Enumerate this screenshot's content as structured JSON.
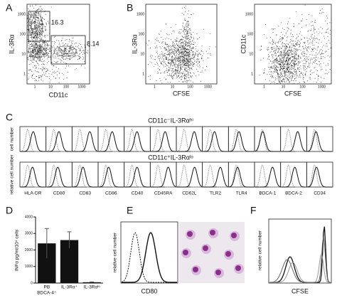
{
  "panel_a": {
    "letter": "A",
    "y_label": "IL-3Rα",
    "x_label": "CD11c",
    "gates": [
      "16.3",
      "8.14"
    ],
    "x_ticks": [
      "1",
      "10",
      "100",
      "1000"
    ],
    "y_ticks": [
      "1",
      "10",
      "100",
      "1000"
    ]
  },
  "panel_b": {
    "letter": "B",
    "plots": [
      {
        "y_label": "IL-3Rα",
        "x_label": "CFSE"
      },
      {
        "y_label": "CD11c",
        "x_label": "CFSE"
      }
    ],
    "x_ticks": [
      "1",
      "10",
      "100",
      "1000"
    ],
    "y_ticks": [
      "1",
      "10",
      "100",
      "1000"
    ]
  },
  "panel_c": {
    "letter": "C",
    "rows": [
      {
        "title": "CD11c⁻IL-3Rαʰⁱ",
        "y_label": "cell number"
      },
      {
        "title": "CD11c⁺IL-3Rαˡᵒ",
        "y_label": "relative cell number"
      }
    ],
    "markers": [
      "HLA-DR",
      "CD80",
      "CD83",
      "CD86",
      "CD40",
      "CD45RA",
      "CD62L",
      "TLR2",
      "TLR4",
      "BDCA-1",
      "BDCA-2",
      "CD34"
    ]
  },
  "panel_d": {
    "letter": "D",
    "y_label": "INFα pg/ml/10⁴ cells",
    "categories": [
      [
        "PB",
        "BDCA-4⁺"
      ],
      [
        "IL-3Rα⁺"
      ],
      [
        "IL-3Rαˡᵒ"
      ]
    ],
    "values": [
      2400,
      2600,
      50
    ],
    "errors": [
      900,
      500,
      20
    ],
    "ylim": [
      0,
      4000
    ],
    "yticks": [
      0,
      1000,
      2000,
      3000,
      4000
    ]
  },
  "panel_e": {
    "letter": "E",
    "y_label": "relative cell number",
    "x_label": "CD80"
  },
  "panel_f": {
    "letter": "F",
    "y_label": "relative cell number",
    "x_label": "CFSE"
  }
}
